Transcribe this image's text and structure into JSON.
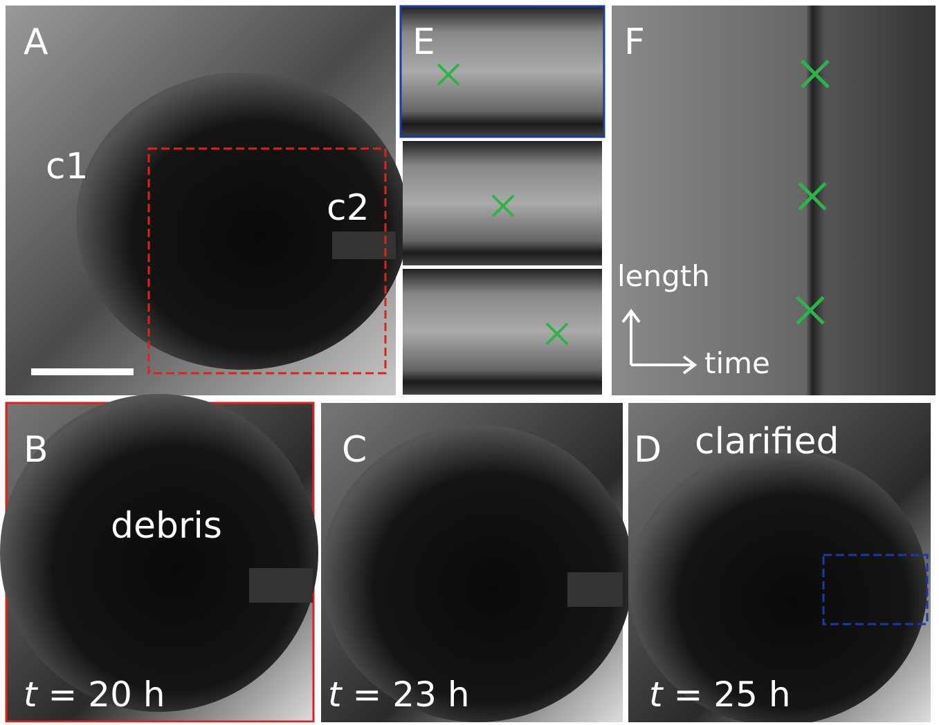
{
  "panels": {
    "a": {
      "label": "A",
      "notes": [
        "c1",
        "c2"
      ]
    },
    "e": {
      "label": "E"
    },
    "f": {
      "label": "F",
      "axes": {
        "y": "length",
        "x": "time"
      }
    },
    "b": {
      "label": "B",
      "note": "debris",
      "time": {
        "var": "t",
        "rest": "= 20 h"
      }
    },
    "c": {
      "label": "C",
      "time": {
        "var": "t",
        "rest": "= 23 h"
      }
    },
    "d": {
      "label": "D",
      "note": "clarified",
      "time": {
        "var": "t",
        "rest": "= 25 h"
      }
    }
  }
}
